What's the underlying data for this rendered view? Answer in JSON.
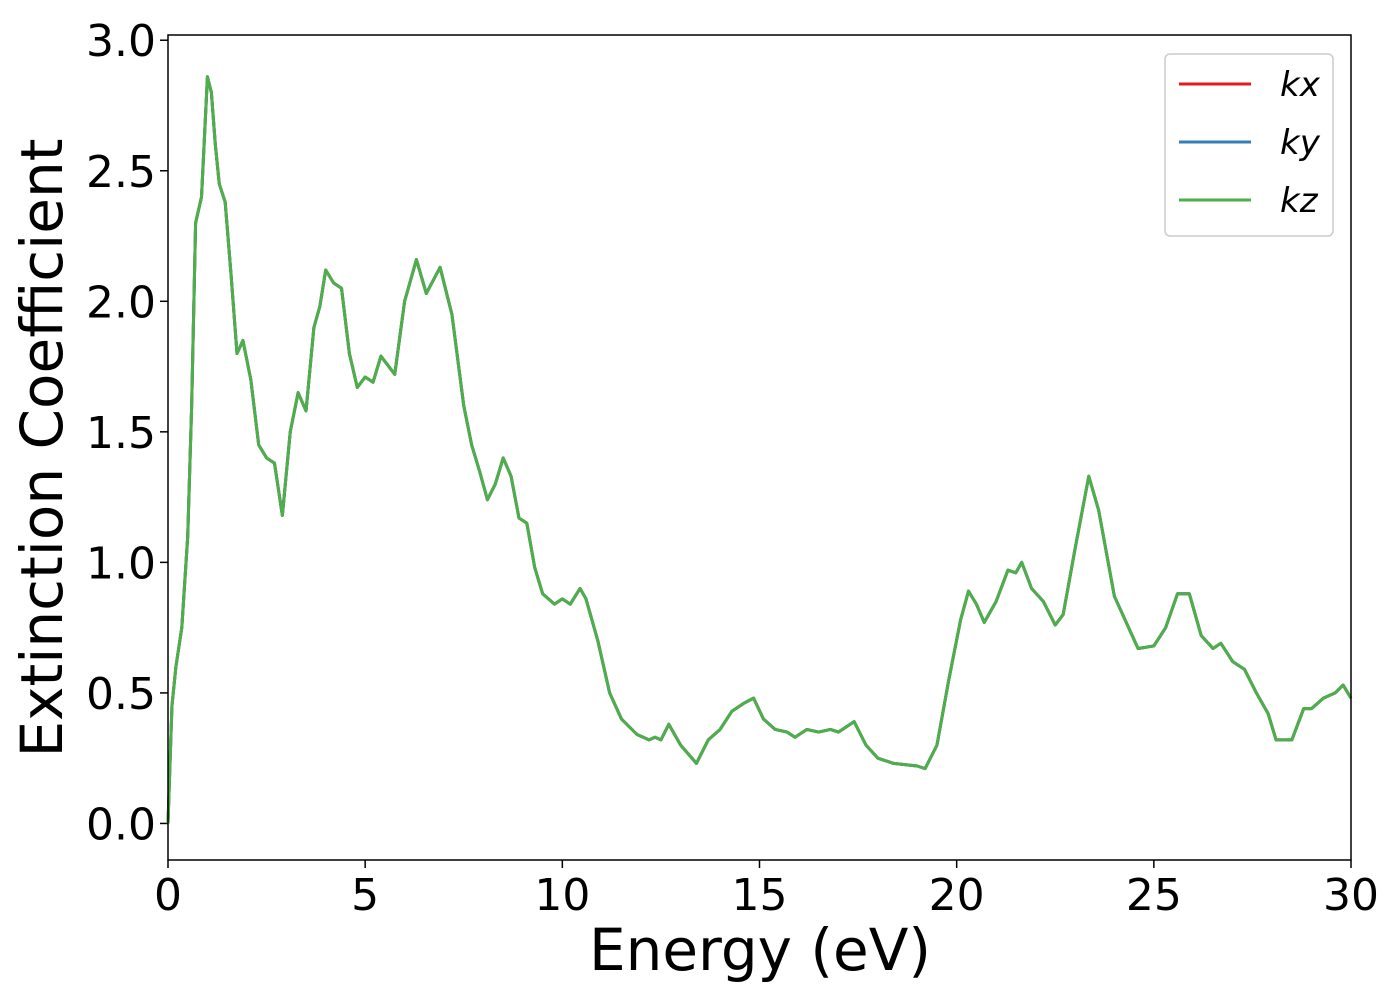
{
  "chart_data": {
    "type": "line",
    "xlabel": "Energy (eV)",
    "ylabel": "Extinction Coefficient",
    "xlim": [
      0,
      30
    ],
    "ylim": [
      -0.14,
      3.02
    ],
    "xticks": [
      0,
      5,
      10,
      15,
      20,
      25,
      30
    ],
    "yticks": [
      {
        "value": 0,
        "label": "0.0"
      },
      {
        "value": 0.5,
        "label": "0.5"
      },
      {
        "value": 1,
        "label": "1.0"
      },
      {
        "value": 1.5,
        "label": "1.5"
      },
      {
        "value": 2,
        "label": "2.0"
      },
      {
        "value": 2.5,
        "label": "2.5"
      },
      {
        "value": 3,
        "label": "3.0"
      }
    ],
    "legend": "upper right",
    "x": [
      0,
      0.1,
      0.2,
      0.35,
      0.5,
      0.6,
      0.7,
      0.85,
      1.0,
      1.1,
      1.2,
      1.3,
      1.45,
      1.6,
      1.75,
      1.9,
      2.1,
      2.3,
      2.5,
      2.7,
      2.9,
      3.1,
      3.3,
      3.5,
      3.7,
      3.85,
      4.0,
      4.2,
      4.4,
      4.6,
      4.8,
      5.0,
      5.2,
      5.4,
      5.6,
      5.75,
      6.0,
      6.3,
      6.55,
      6.9,
      7.2,
      7.5,
      7.7,
      7.9,
      8.1,
      8.3,
      8.5,
      8.7,
      8.9,
      9.1,
      9.3,
      9.5,
      9.8,
      10.0,
      10.2,
      10.45,
      10.6,
      10.9,
      11.2,
      11.5,
      11.9,
      12.2,
      12.35,
      12.5,
      12.7,
      13.0,
      13.4,
      13.7,
      14.0,
      14.3,
      14.6,
      14.85,
      15.1,
      15.4,
      15.7,
      15.9,
      16.2,
      16.5,
      16.8,
      17.0,
      17.2,
      17.4,
      17.7,
      18.0,
      18.4,
      19.0,
      19.2,
      19.5,
      19.8,
      20.1,
      20.3,
      20.5,
      20.7,
      21.0,
      21.3,
      21.5,
      21.65,
      21.9,
      22.2,
      22.5,
      22.7,
      23.0,
      23.35,
      23.6,
      24.0,
      24.3,
      24.6,
      25.0,
      25.3,
      25.6,
      25.9,
      26.2,
      26.5,
      26.7,
      27.0,
      27.3,
      27.6,
      27.9,
      28.1,
      28.5,
      28.8,
      29.0,
      29.3,
      29.6,
      29.8,
      30.0
    ],
    "series": [
      {
        "name": "kx",
        "color": "#e41a1c",
        "values": [
          0.0,
          0.45,
          0.6,
          0.75,
          1.1,
          1.6,
          2.3,
          2.4,
          2.86,
          2.8,
          2.6,
          2.45,
          2.38,
          2.1,
          1.8,
          1.85,
          1.7,
          1.45,
          1.4,
          1.38,
          1.18,
          1.5,
          1.65,
          1.58,
          1.9,
          1.98,
          2.12,
          2.07,
          2.05,
          1.8,
          1.67,
          1.71,
          1.69,
          1.79,
          1.75,
          1.72,
          2.0,
          2.16,
          2.03,
          2.13,
          1.95,
          1.6,
          1.45,
          1.35,
          1.24,
          1.3,
          1.4,
          1.33,
          1.17,
          1.15,
          0.98,
          0.88,
          0.84,
          0.86,
          0.84,
          0.9,
          0.86,
          0.7,
          0.5,
          0.4,
          0.34,
          0.32,
          0.33,
          0.32,
          0.38,
          0.3,
          0.23,
          0.32,
          0.36,
          0.43,
          0.46,
          0.48,
          0.4,
          0.36,
          0.35,
          0.33,
          0.36,
          0.35,
          0.36,
          0.35,
          0.37,
          0.39,
          0.3,
          0.25,
          0.23,
          0.22,
          0.21,
          0.3,
          0.55,
          0.78,
          0.89,
          0.84,
          0.77,
          0.85,
          0.97,
          0.96,
          1.0,
          0.9,
          0.85,
          0.76,
          0.8,
          1.05,
          1.33,
          1.2,
          0.87,
          0.77,
          0.67,
          0.68,
          0.75,
          0.88,
          0.88,
          0.72,
          0.67,
          0.69,
          0.62,
          0.59,
          0.5,
          0.42,
          0.32,
          0.32,
          0.44,
          0.44,
          0.48,
          0.5,
          0.53,
          0.48
        ]
      },
      {
        "name": "ky",
        "color": "#377eb8",
        "values": [
          0.0,
          0.45,
          0.6,
          0.75,
          1.1,
          1.6,
          2.3,
          2.4,
          2.86,
          2.8,
          2.6,
          2.45,
          2.38,
          2.1,
          1.8,
          1.85,
          1.7,
          1.45,
          1.4,
          1.38,
          1.18,
          1.5,
          1.65,
          1.58,
          1.9,
          1.98,
          2.12,
          2.07,
          2.05,
          1.8,
          1.67,
          1.71,
          1.69,
          1.79,
          1.75,
          1.72,
          2.0,
          2.16,
          2.03,
          2.13,
          1.95,
          1.6,
          1.45,
          1.35,
          1.24,
          1.3,
          1.4,
          1.33,
          1.17,
          1.15,
          0.98,
          0.88,
          0.84,
          0.86,
          0.84,
          0.9,
          0.86,
          0.7,
          0.5,
          0.4,
          0.34,
          0.32,
          0.33,
          0.32,
          0.38,
          0.3,
          0.23,
          0.32,
          0.36,
          0.43,
          0.46,
          0.48,
          0.4,
          0.36,
          0.35,
          0.33,
          0.36,
          0.35,
          0.36,
          0.35,
          0.37,
          0.39,
          0.3,
          0.25,
          0.23,
          0.22,
          0.21,
          0.3,
          0.55,
          0.78,
          0.89,
          0.84,
          0.77,
          0.85,
          0.97,
          0.96,
          1.0,
          0.9,
          0.85,
          0.76,
          0.8,
          1.05,
          1.33,
          1.2,
          0.87,
          0.77,
          0.67,
          0.68,
          0.75,
          0.88,
          0.88,
          0.72,
          0.67,
          0.69,
          0.62,
          0.59,
          0.5,
          0.42,
          0.32,
          0.32,
          0.44,
          0.44,
          0.48,
          0.5,
          0.53,
          0.48
        ]
      },
      {
        "name": "kz",
        "color": "#4daf4a",
        "values": [
          0.0,
          0.45,
          0.6,
          0.75,
          1.1,
          1.6,
          2.3,
          2.4,
          2.86,
          2.8,
          2.6,
          2.45,
          2.38,
          2.1,
          1.8,
          1.85,
          1.7,
          1.45,
          1.4,
          1.38,
          1.18,
          1.5,
          1.65,
          1.58,
          1.9,
          1.98,
          2.12,
          2.07,
          2.05,
          1.8,
          1.67,
          1.71,
          1.69,
          1.79,
          1.75,
          1.72,
          2.0,
          2.16,
          2.03,
          2.13,
          1.95,
          1.6,
          1.45,
          1.35,
          1.24,
          1.3,
          1.4,
          1.33,
          1.17,
          1.15,
          0.98,
          0.88,
          0.84,
          0.86,
          0.84,
          0.9,
          0.86,
          0.7,
          0.5,
          0.4,
          0.34,
          0.32,
          0.33,
          0.32,
          0.38,
          0.3,
          0.23,
          0.32,
          0.36,
          0.43,
          0.46,
          0.48,
          0.4,
          0.36,
          0.35,
          0.33,
          0.36,
          0.35,
          0.36,
          0.35,
          0.37,
          0.39,
          0.3,
          0.25,
          0.23,
          0.22,
          0.21,
          0.3,
          0.55,
          0.78,
          0.89,
          0.84,
          0.77,
          0.85,
          0.97,
          0.96,
          1.0,
          0.9,
          0.85,
          0.76,
          0.8,
          1.05,
          1.33,
          1.2,
          0.87,
          0.77,
          0.67,
          0.68,
          0.75,
          0.88,
          0.88,
          0.72,
          0.67,
          0.69,
          0.62,
          0.59,
          0.5,
          0.42,
          0.32,
          0.32,
          0.44,
          0.44,
          0.48,
          0.5,
          0.53,
          0.48
        ]
      }
    ]
  }
}
